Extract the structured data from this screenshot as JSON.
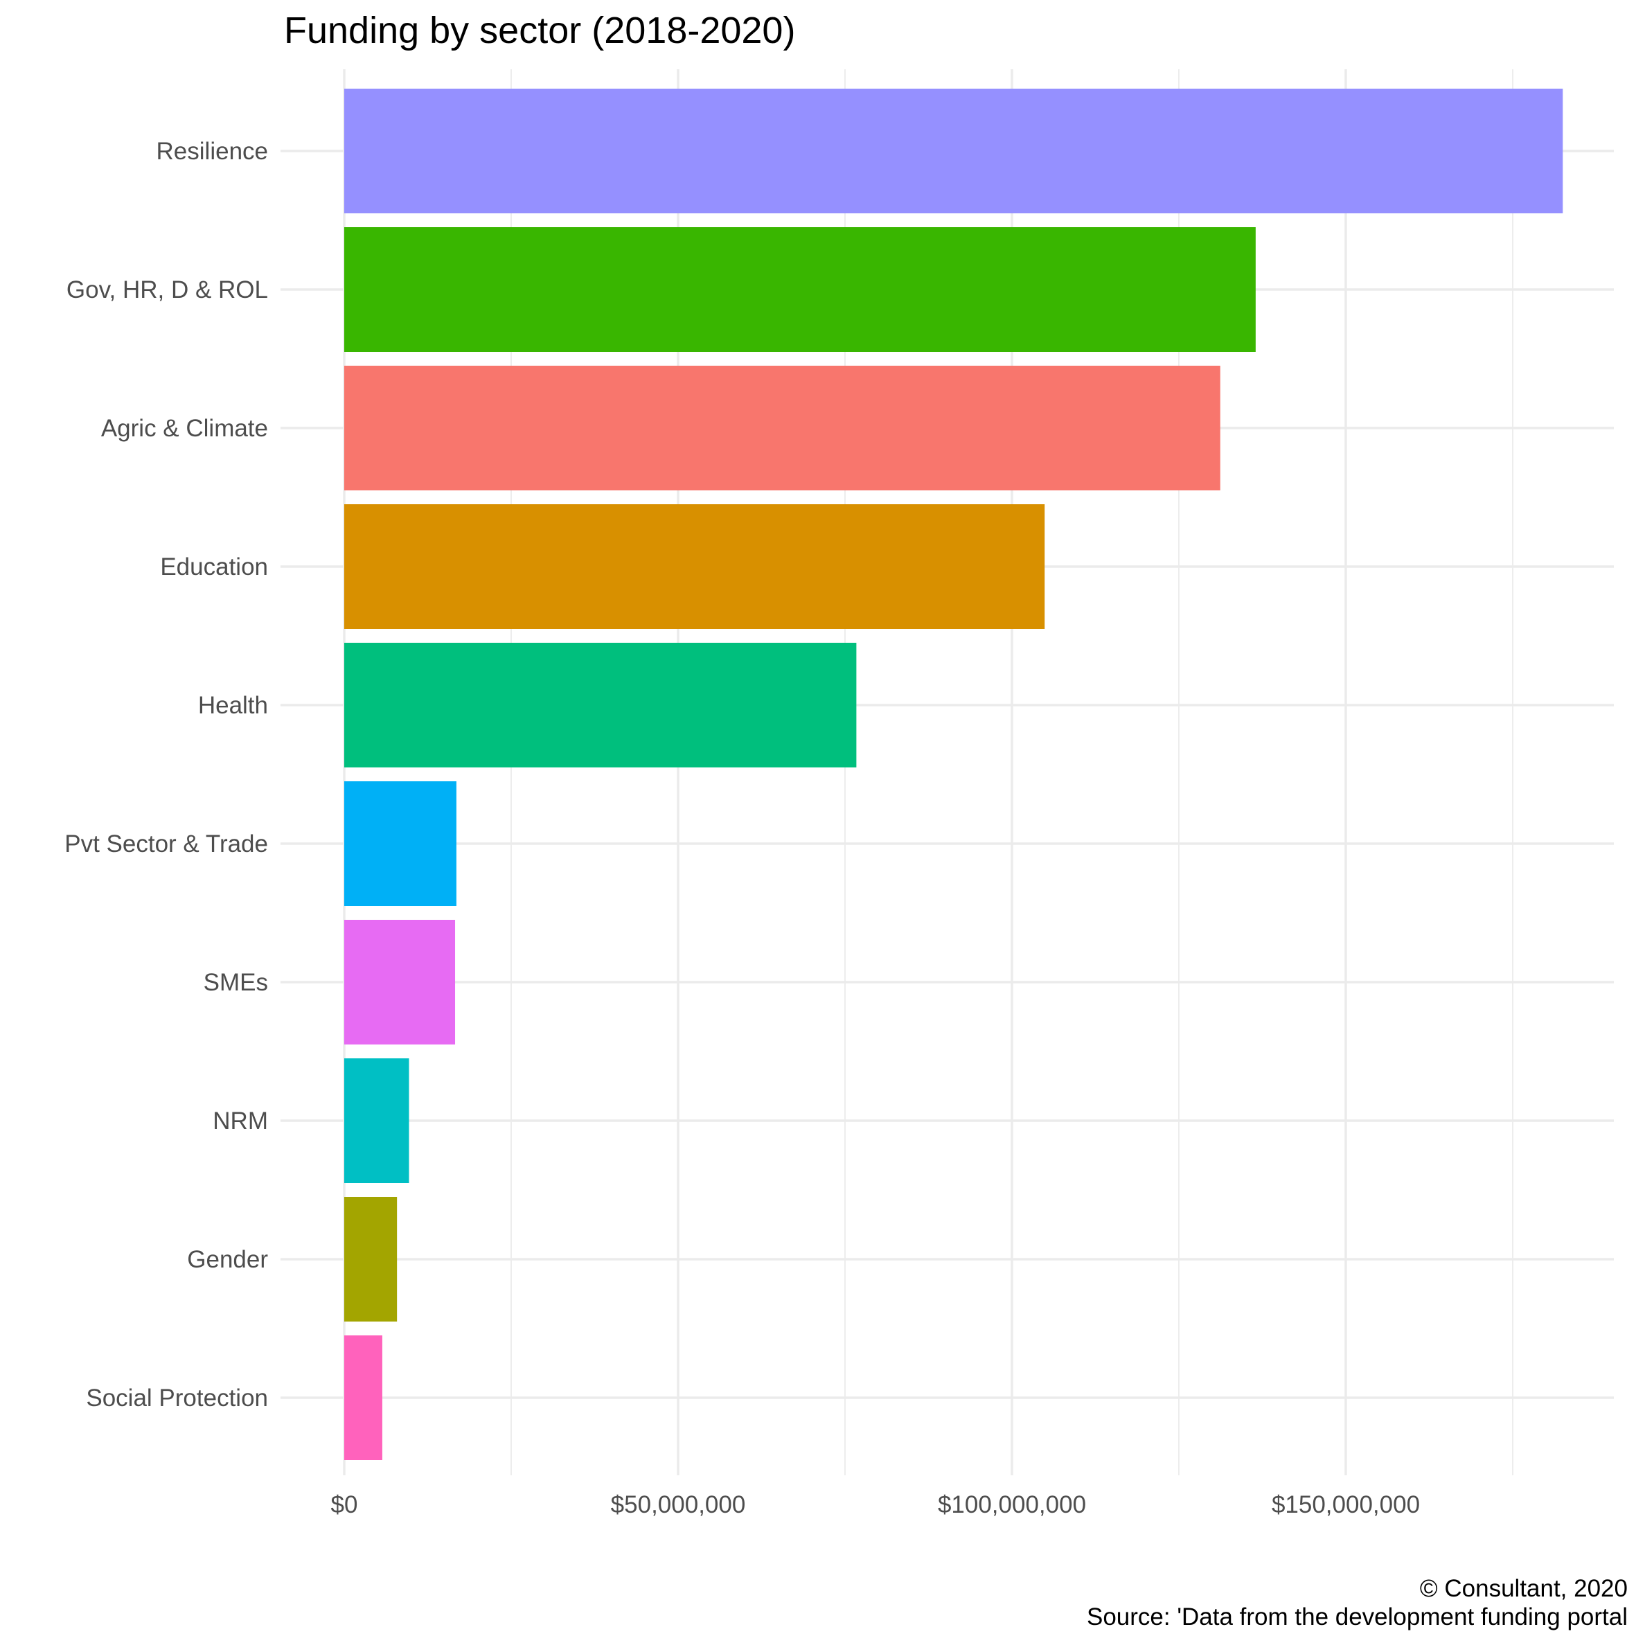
{
  "chart_data": {
    "type": "bar",
    "orientation": "horizontal",
    "title": "Funding by sector (2018-2020)",
    "xlabel": "",
    "ylabel": "",
    "categories": [
      "Resilience",
      "Gov, HR, D & ROL",
      "Agric & Climate",
      "Education",
      "Health",
      "Pvt Sector & Trade",
      "SMEs",
      "NRM",
      "Gender",
      "Social Protection"
    ],
    "values": [
      182500000,
      136500000,
      131200000,
      104900000,
      76700000,
      16800000,
      16600000,
      9700000,
      7900000,
      5700000
    ],
    "colors": [
      "#9590FF",
      "#39B600",
      "#F8766D",
      "#D89000",
      "#00BF7D",
      "#00B0F6",
      "#E76BF3",
      "#00BFC4",
      "#A3A500",
      "#FF62BC"
    ],
    "xlim": [
      0,
      190000000
    ],
    "x_ticks": [
      0,
      50000000,
      100000000,
      150000000
    ],
    "x_tick_labels": [
      "$0",
      "$50,000,000",
      "$100,000,000",
      "$150,000,000"
    ],
    "grid": true,
    "legend": "none",
    "caption_lines": [
      "© Consultant, 2020",
      "Source: 'Data from the development funding portal"
    ]
  }
}
